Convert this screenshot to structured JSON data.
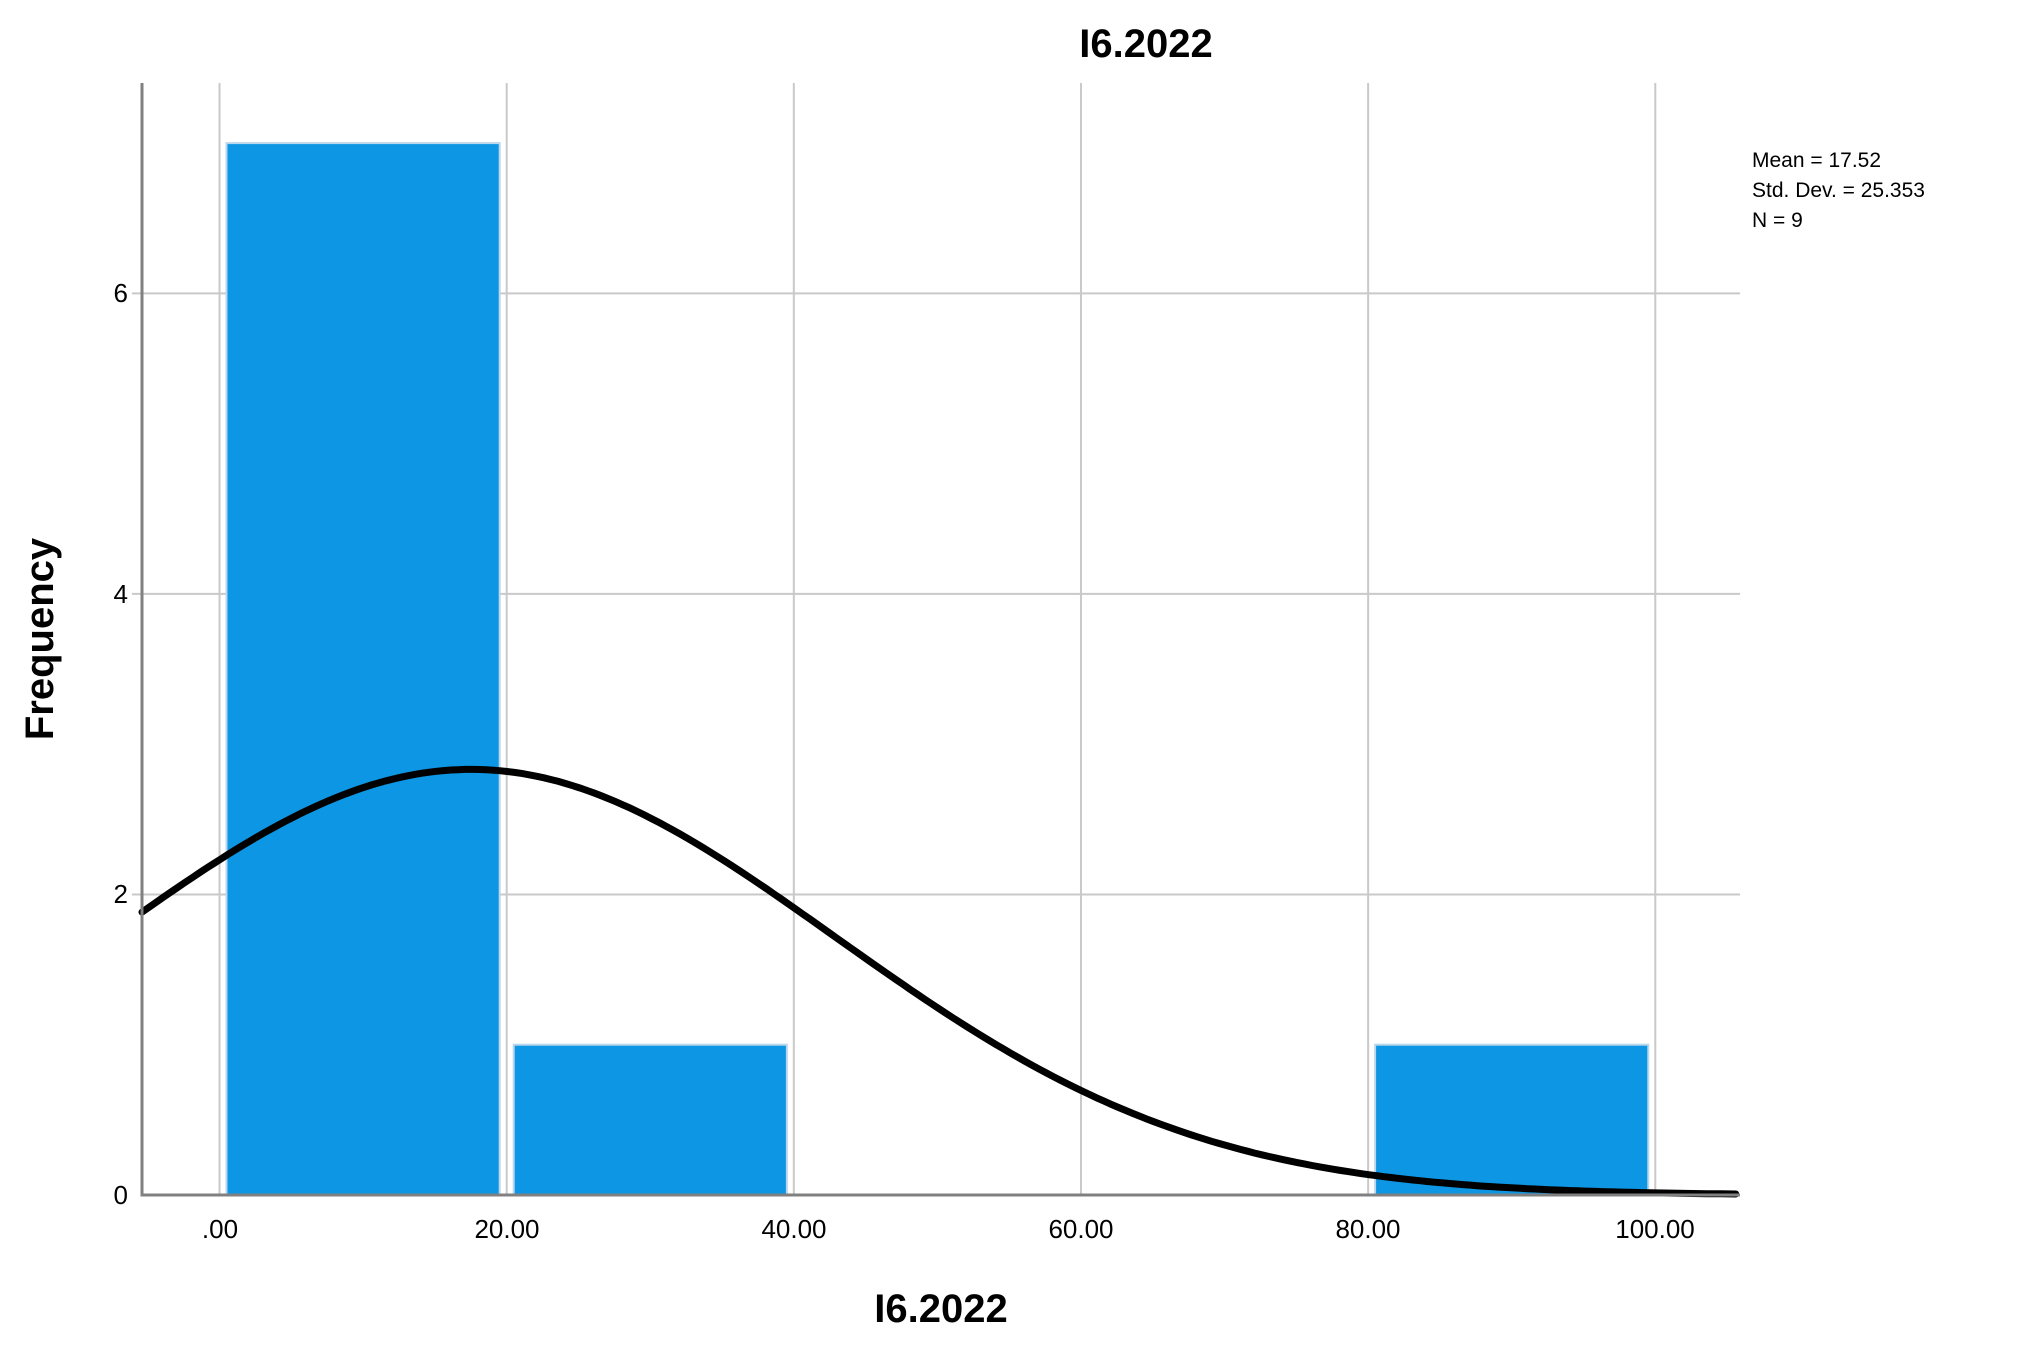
{
  "title": "I6.2022",
  "x_axis_label": "I6.2022",
  "y_axis_label": "Frequency",
  "stats": {
    "mean_label": "Mean = 17.52",
    "std_label": "Std. Dev. = 25.353",
    "n_label": "N = 9"
  },
  "colors": {
    "bar_fill": "#0D96E3",
    "bar_border": "#BCD7EC",
    "gridline": "#C9C9C9",
    "axis": "#808080",
    "curve": "#000000",
    "text": "#000000"
  },
  "chart_data": {
    "type": "bar",
    "subtype": "histogram-with-normal-curve",
    "title": "I6.2022",
    "xlabel": "I6.2022",
    "ylabel": "Frequency",
    "bins": [
      {
        "start": 0,
        "end": 20,
        "frequency": 7
      },
      {
        "start": 20,
        "end": 40,
        "frequency": 1
      },
      {
        "start": 80,
        "end": 100,
        "frequency": 1
      }
    ],
    "bin_width": 20,
    "x_ticks": [
      0,
      20,
      40,
      60,
      80,
      100
    ],
    "x_tick_labels": [
      ".00",
      "20.00",
      "40.00",
      "60.00",
      "80.00",
      "100.00"
    ],
    "y_ticks": [
      0,
      2,
      4,
      6
    ],
    "y_tick_labels": [
      "0",
      "2",
      "4",
      "6"
    ],
    "x_range": [
      -5.4,
      105.9
    ],
    "y_range": [
      0,
      7.4
    ],
    "normal_curve": {
      "mean": 17.52,
      "std_dev": 25.353,
      "n": 9
    },
    "grid": true,
    "legend_position": "none",
    "annotation_lines": [
      "Mean = 17.52",
      "Std. Dev. = 25.353",
      "N = 9"
    ]
  }
}
